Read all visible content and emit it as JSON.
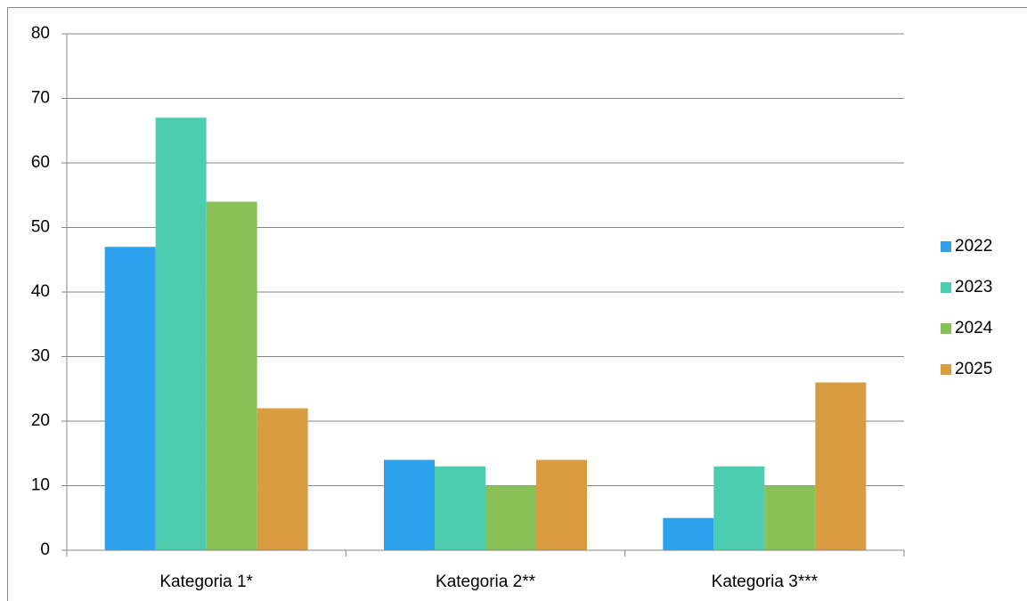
{
  "chart_data": {
    "type": "bar",
    "categories": [
      "Kategoria 1*",
      "Kategoria 2**",
      "Kategoria 3***"
    ],
    "series": [
      {
        "name": "2022",
        "color": "#2ea1ec",
        "values": [
          47,
          14,
          5
        ]
      },
      {
        "name": "2023",
        "color": "#4dcdb0",
        "values": [
          67,
          13,
          13
        ]
      },
      {
        "name": "2024",
        "color": "#88c157",
        "values": [
          54,
          10,
          10
        ]
      },
      {
        "name": "2025",
        "color": "#d99c40",
        "values": [
          22,
          14,
          26
        ]
      }
    ],
    "ylim": [
      0,
      80
    ],
    "yticks": [
      0,
      10,
      20,
      30,
      40,
      50,
      60,
      70,
      80
    ],
    "grid": true,
    "legend": "right"
  }
}
